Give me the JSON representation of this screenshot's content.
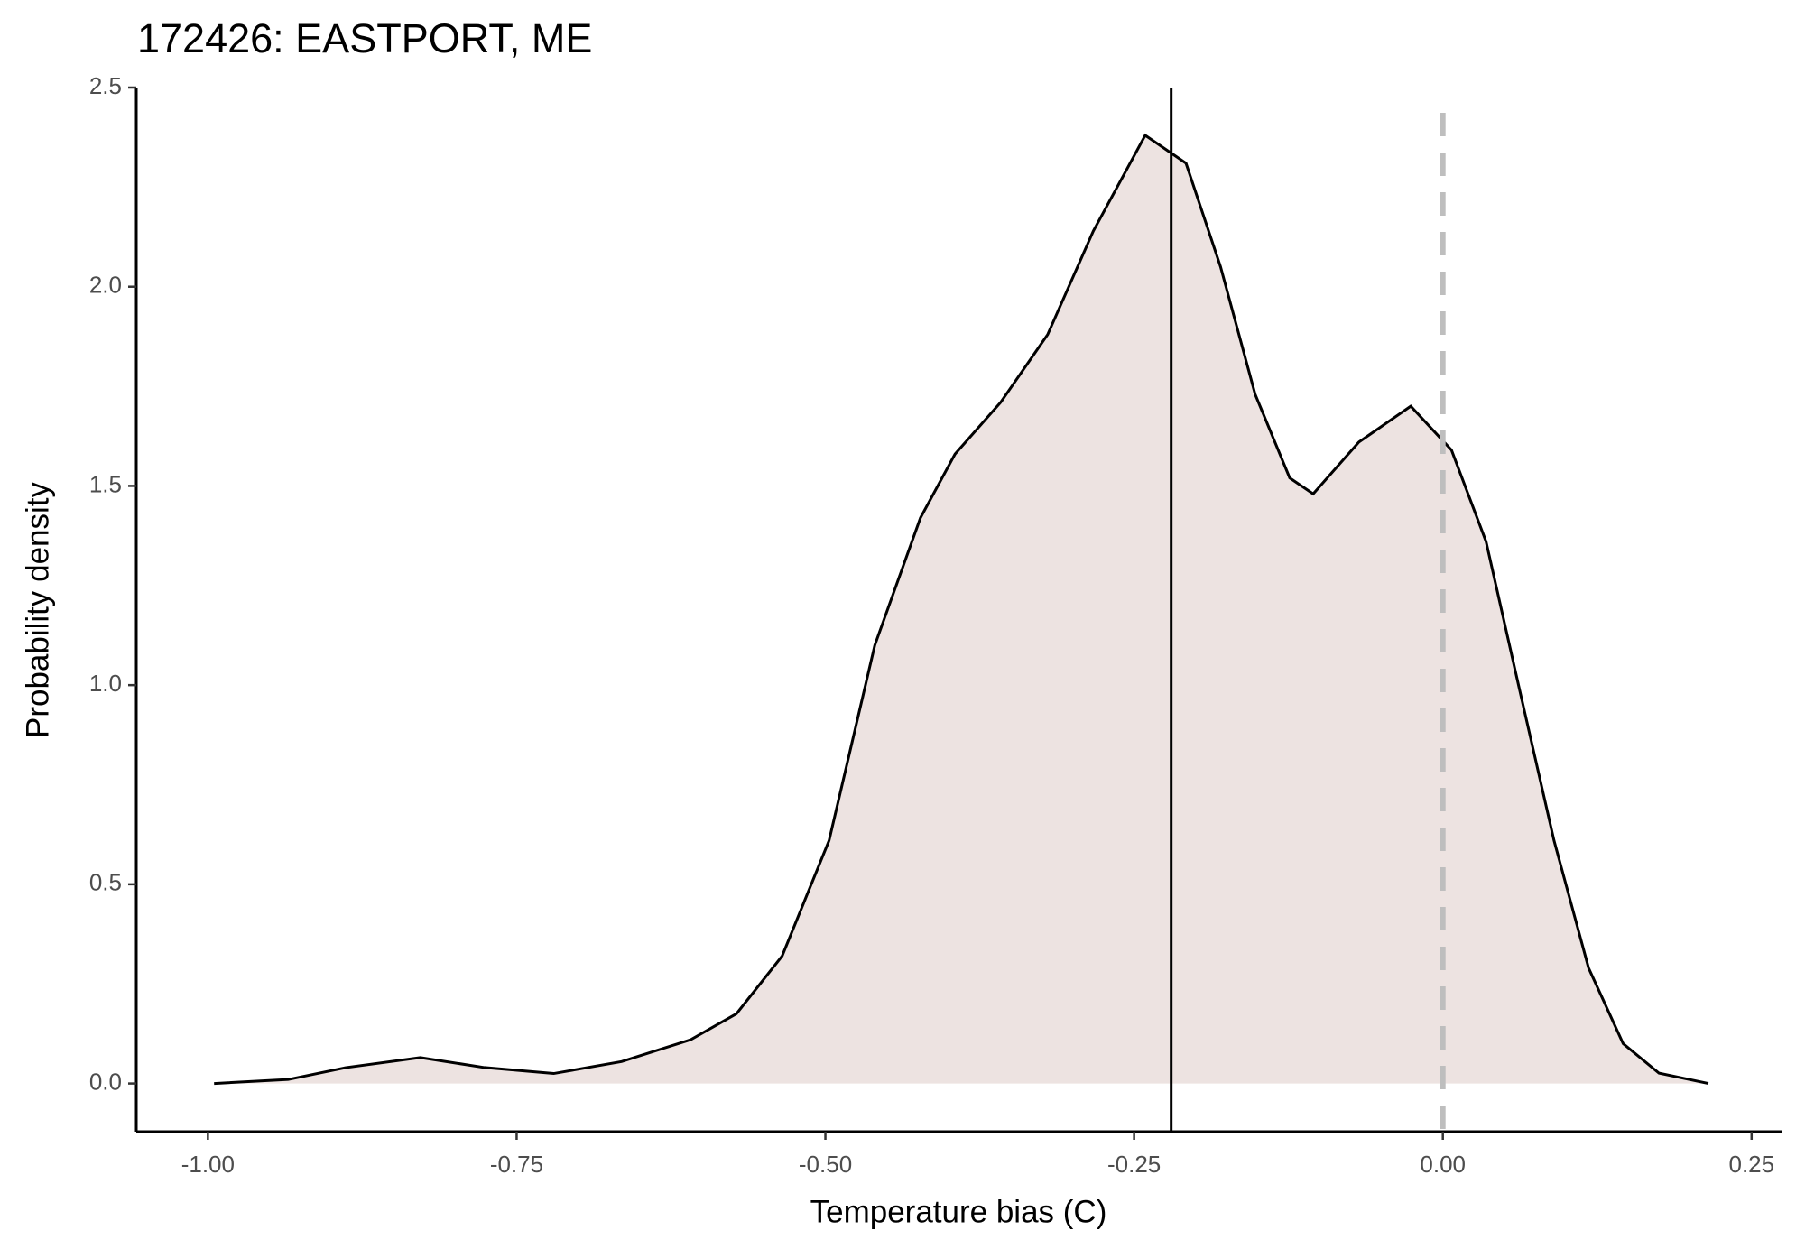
{
  "chart_data": {
    "type": "area",
    "title": "172426: EASTPORT, ME",
    "x_label": "Temperature bias (C)",
    "y_label": "Probability density",
    "x": [
      -0.995,
      -0.935,
      -0.888,
      -0.828,
      -0.776,
      -0.72,
      -0.665,
      -0.609,
      -0.572,
      -0.535,
      -0.497,
      -0.46,
      -0.423,
      -0.395,
      -0.358,
      -0.32,
      -0.283,
      -0.241,
      -0.208,
      -0.18,
      -0.152,
      -0.124,
      -0.105,
      -0.068,
      -0.026,
      0.007,
      0.035,
      0.062,
      0.09,
      0.118,
      0.146,
      0.175,
      0.215
    ],
    "values": [
      0,
      0.01,
      0.04,
      0.065,
      0.04,
      0.025,
      0.055,
      0.11,
      0.175,
      0.32,
      0.61,
      1.1,
      1.42,
      1.58,
      1.71,
      1.88,
      2.14,
      2.38,
      2.31,
      2.05,
      1.73,
      1.52,
      1.48,
      1.61,
      1.7,
      1.59,
      1.36,
      0.99,
      0.61,
      0.29,
      0.1,
      0.026,
      0
    ],
    "color": "#ede3e1",
    "line_color": "#000000",
    "mean_line": -0.22,
    "reference_line": 0,
    "reference_color": "#bebebe",
    "xlim": [
      -1.058,
      0.275
    ],
    "ylim": [
      -0.121,
      2.5
    ],
    "xticks": [
      {
        "value": -1,
        "label": "-1.00"
      },
      {
        "value": -0.75,
        "label": "-0.75"
      },
      {
        "value": -0.5,
        "label": "-0.50"
      },
      {
        "value": -0.25,
        "label": "-0.25"
      },
      {
        "value": 0,
        "label": "0.00"
      },
      {
        "value": 0.25,
        "label": "0.25"
      }
    ],
    "yticks": [
      {
        "value": 0,
        "label": "0.0"
      },
      {
        "value": 0.5,
        "label": "0.5"
      },
      {
        "value": 1,
        "label": "1.0"
      },
      {
        "value": 1.5,
        "label": "1.5"
      },
      {
        "value": 2,
        "label": "2.0"
      },
      {
        "value": 2.5,
        "label": "2.5"
      }
    ]
  }
}
